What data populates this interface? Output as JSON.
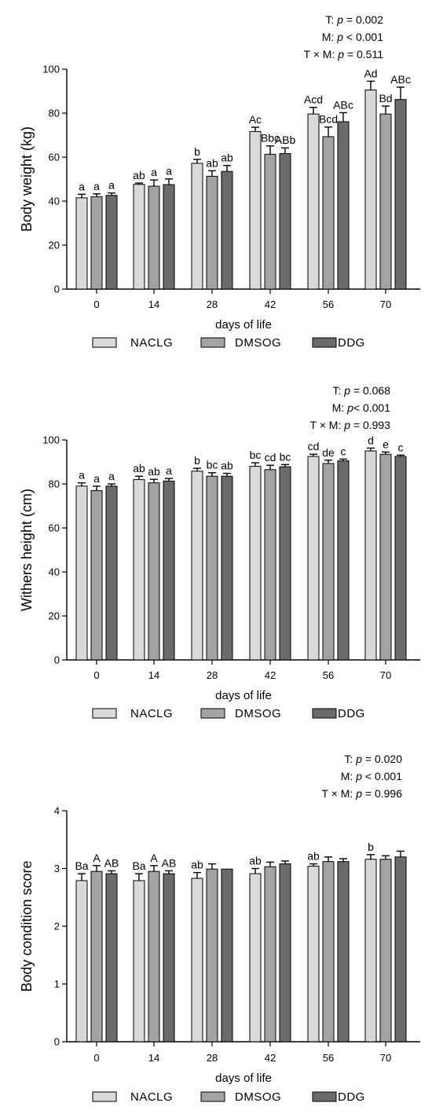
{
  "chart_data": [
    {
      "type": "bar",
      "title": "",
      "xlabel": "days of life",
      "ylabel": "Body weight (kg)",
      "ylim": [
        0,
        100
      ],
      "yticks": [
        0,
        20,
        40,
        60,
        80,
        100
      ],
      "categories": [
        "0",
        "14",
        "28",
        "42",
        "56",
        "70"
      ],
      "legend_position": "bottom",
      "stats": [
        {
          "prefix": "T: ",
          "p": "p",
          "rest": " = 0.002"
        },
        {
          "prefix": "M: ",
          "p": "p",
          "rest": " < 0.001"
        },
        {
          "prefix": "T × M:  ",
          "p": "p",
          "rest": " = 0.511"
        }
      ],
      "series": [
        {
          "name": "NACLG",
          "color": "#d9d9d9",
          "values": [
            41.5,
            47.6,
            57.2,
            71.6,
            79.6,
            90.5
          ],
          "errors": [
            1.6,
            0.6,
            1.8,
            2.0,
            3.0,
            4.0
          ],
          "labels": [
            "a",
            "ab",
            "b",
            "Ac",
            "Acd",
            "Ad"
          ]
        },
        {
          "name": "DMSOG",
          "color": "#a3a3a3",
          "values": [
            42.0,
            46.8,
            51.3,
            61.3,
            69.3,
            79.6
          ],
          "errors": [
            1.3,
            2.8,
            2.5,
            3.8,
            4.4,
            3.6
          ],
          "labels": [
            "a",
            "a",
            "ab",
            "Bbc",
            "Bcd",
            "Bd"
          ]
        },
        {
          "name": "DDG",
          "color": "#6b6b6b",
          "values": [
            42.6,
            47.5,
            53.5,
            61.6,
            76.1,
            86.2
          ],
          "errors": [
            1.1,
            2.6,
            2.7,
            2.6,
            4.1,
            5.6
          ],
          "labels": [
            "a",
            "a",
            "ab",
            "ABb",
            "ABc",
            "ABc"
          ]
        }
      ]
    },
    {
      "type": "bar",
      "title": "",
      "xlabel": "days of life",
      "ylabel": "Withers height (cm)",
      "ylim": [
        0,
        100
      ],
      "yticks": [
        0,
        20,
        40,
        60,
        80,
        100
      ],
      "categories": [
        "0",
        "14",
        "28",
        "42",
        "56",
        "70"
      ],
      "legend_position": "bottom",
      "stats": [
        {
          "prefix": "T: ",
          "p": "p",
          "rest": " = 0.068"
        },
        {
          "prefix": "M: ",
          "p": "p",
          "rest": "< 0.001"
        },
        {
          "prefix": "T × M: ",
          "p": "p",
          "rest": " = 0.993"
        }
      ],
      "series": [
        {
          "name": "NACLG",
          "color": "#d9d9d9",
          "values": [
            79.0,
            82.0,
            85.8,
            88.0,
            92.5,
            95.0
          ],
          "errors": [
            1.5,
            1.5,
            1.3,
            1.6,
            1.0,
            1.3
          ],
          "labels": [
            "a",
            "ab",
            "b",
            "bc",
            "cd",
            "d"
          ]
        },
        {
          "name": "DMSOG",
          "color": "#a3a3a3",
          "values": [
            77.0,
            80.5,
            83.5,
            86.5,
            89.3,
            93.5
          ],
          "errors": [
            2.0,
            1.6,
            1.6,
            2.0,
            1.5,
            1.0
          ],
          "labels": [
            "a",
            "ab",
            "bc",
            "cd",
            "de",
            "e"
          ]
        },
        {
          "name": "DDG",
          "color": "#6b6b6b",
          "values": [
            79.0,
            81.3,
            83.5,
            87.8,
            90.5,
            92.5
          ],
          "errors": [
            1.0,
            1.2,
            1.3,
            1.0,
            0.8,
            0.6
          ],
          "labels": [
            "a",
            "a",
            "ab",
            "bc",
            "c",
            "c"
          ]
        }
      ]
    },
    {
      "type": "bar",
      "title": "",
      "xlabel": "days of life",
      "ylabel": "Body condition score",
      "ylim": [
        0,
        4
      ],
      "yticks": [
        0,
        1,
        2,
        3,
        4
      ],
      "categories": [
        "0",
        "14",
        "28",
        "42",
        "56",
        "70"
      ],
      "legend_position": "bottom",
      "stats": [
        {
          "prefix": "T: ",
          "p": "p",
          "rest": " = 0.020"
        },
        {
          "prefix": "M: ",
          "p": "p",
          "rest": " < 0.001"
        },
        {
          "prefix": "T × M: ",
          "p": "p",
          "rest": " = 0.996"
        }
      ],
      "series": [
        {
          "name": "NACLG",
          "color": "#d9d9d9",
          "values": [
            2.79,
            2.79,
            2.83,
            2.91,
            3.04,
            3.16
          ],
          "errors": [
            0.12,
            0.12,
            0.1,
            0.09,
            0.04,
            0.08
          ],
          "labels": [
            "Ba",
            "Ba",
            "ab",
            "ab",
            "ab",
            "b"
          ]
        },
        {
          "name": "DMSOG",
          "color": "#a3a3a3",
          "values": [
            2.95,
            2.95,
            2.99,
            3.03,
            3.12,
            3.16
          ],
          "errors": [
            0.1,
            0.1,
            0.09,
            0.08,
            0.08,
            0.06
          ],
          "labels": [
            "A",
            "A",
            "",
            "",
            "",
            ""
          ]
        },
        {
          "name": "DDG",
          "color": "#6b6b6b",
          "values": [
            2.91,
            2.91,
            2.99,
            3.08,
            3.12,
            3.2
          ],
          "errors": [
            0.05,
            0.05,
            0.0,
            0.05,
            0.05,
            0.1
          ],
          "labels": [
            "AB",
            "AB",
            "",
            "",
            "",
            ""
          ]
        }
      ]
    }
  ]
}
